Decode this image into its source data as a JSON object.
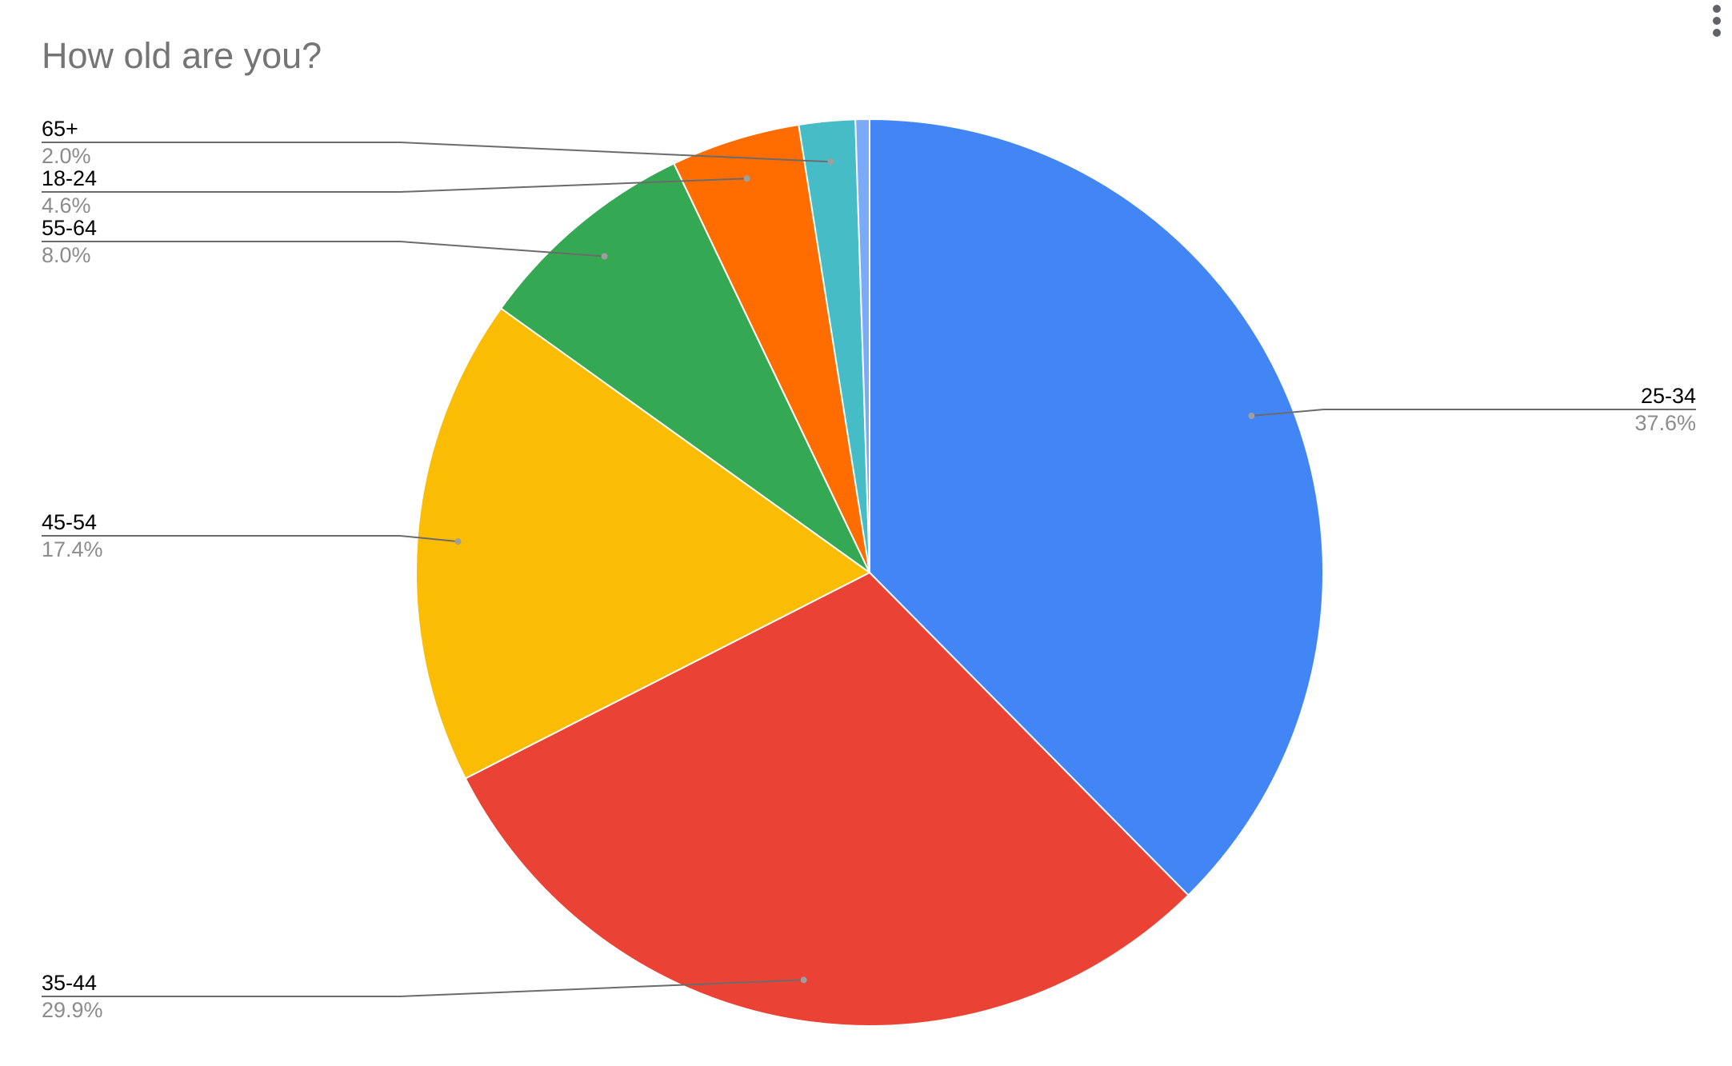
{
  "chart_data": {
    "type": "pie",
    "title": "How old are you?",
    "slices": [
      {
        "label": "25-34",
        "value": 37.6,
        "display": "37.6%",
        "color": "#4285f4"
      },
      {
        "label": "35-44",
        "value": 29.9,
        "display": "29.9%",
        "color": "#ea4335"
      },
      {
        "label": "45-54",
        "value": 17.4,
        "display": "17.4%",
        "color": "#fbbc04"
      },
      {
        "label": "55-64",
        "value": 8.0,
        "display": "8.0%",
        "color": "#34a853"
      },
      {
        "label": "18-24",
        "value": 4.6,
        "display": "4.6%",
        "color": "#ff6d01"
      },
      {
        "label": "65+",
        "value": 2.0,
        "display": "2.0%",
        "color": "#46bdc6"
      },
      {
        "label": "",
        "value": 0.5,
        "display": "",
        "color": "#7baaf7"
      }
    ],
    "start_angle_deg": 0,
    "direction": "clockwise",
    "legend": "labeled-callouts"
  },
  "menu": {
    "icon": "more-vert-icon"
  }
}
